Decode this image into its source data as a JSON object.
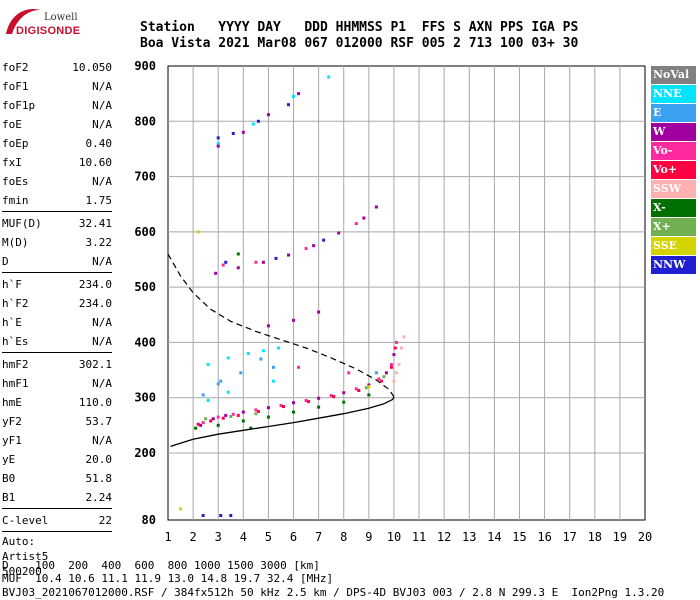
{
  "logo": {
    "line1": "Lowell",
    "line2": "DIGISONDE"
  },
  "header": {
    "line1": "Station   YYYY DAY   DDD HHMMSS P1  FFS S AXN PPS IGA PS",
    "line2": "Boa Vista 2021 Mar08 067 012000 RSF 005 2 713 100 03+ 30"
  },
  "params": [
    {
      "label": "foF2",
      "value": "10.050"
    },
    {
      "label": "foF1",
      "value": "N/A"
    },
    {
      "label": "foF1p",
      "value": "N/A"
    },
    {
      "label": "foE",
      "value": "N/A"
    },
    {
      "label": "foEp",
      "value": "0.40"
    },
    {
      "label": "fxI",
      "value": "10.60"
    },
    {
      "label": "foEs",
      "value": "N/A"
    },
    {
      "label": "fmin",
      "value": "1.75"
    },
    {
      "sep": true
    },
    {
      "label": "MUF(D)",
      "value": "32.41"
    },
    {
      "label": "M(D)",
      "value": "3.22"
    },
    {
      "label": "D",
      "value": "N/A"
    },
    {
      "sep": true
    },
    {
      "label": "h`F",
      "value": "234.0"
    },
    {
      "label": "h`F2",
      "value": "234.0"
    },
    {
      "label": "h`E",
      "value": "N/A"
    },
    {
      "label": "h`Es",
      "value": "N/A"
    },
    {
      "sep": true
    },
    {
      "label": "hmF2",
      "value": "302.1"
    },
    {
      "label": "hmF1",
      "value": "N/A"
    },
    {
      "label": "hmE",
      "value": "110.0"
    },
    {
      "label": "yF2",
      "value": "53.7"
    },
    {
      "label": "yF1",
      "value": "N/A"
    },
    {
      "label": "yE",
      "value": "20.0"
    },
    {
      "label": "B0",
      "value": "51.8"
    },
    {
      "label": "B1",
      "value": "2.24"
    },
    {
      "sep": true
    },
    {
      "label": "C-level",
      "value": "22"
    },
    {
      "sep": true
    }
  ],
  "auto": [
    "Auto:",
    "Artist5",
    "500200"
  ],
  "legend": [
    {
      "name": "NoVal",
      "color": "#808080"
    },
    {
      "name": "NNE",
      "color": "#00e5ff"
    },
    {
      "name": "E",
      "color": "#3aa0f0"
    },
    {
      "name": "W",
      "color": "#a000a0"
    },
    {
      "name": "Vo-",
      "color": "#ff2aa0"
    },
    {
      "name": "Vo+",
      "color": "#ff0040"
    },
    {
      "name": "SSW",
      "color": "#ffb0b0"
    },
    {
      "name": "X-",
      "color": "#007000"
    },
    {
      "name": "X+",
      "color": "#70b050"
    },
    {
      "name": "SSE",
      "color": "#d4d400"
    },
    {
      "name": "NNW",
      "color": "#2020d0"
    }
  ],
  "footer": {
    "d_line": "D    100  200  400  600  800 1000 1500 3000 [km]",
    "muf_line": "MUF  10.4 10.6 11.1 11.9 13.0 14.8 19.7 32.4 [MHz]",
    "info_line": "BVJ03_2021067012000.RSF / 384fx512h 50 kHz 2.5 km / DPS-4D BVJ03 003 / 2.8 N 299.3 E  Ion2Png 1.3.20"
  },
  "chart_data": {
    "type": "scatter",
    "xlabel": "",
    "ylabel": "",
    "xlim": [
      1,
      20
    ],
    "ylim": [
      80,
      900
    ],
    "x_ticks": [
      1,
      2,
      3,
      4,
      5,
      6,
      7,
      8,
      9,
      10,
      11,
      12,
      13,
      14,
      15,
      16,
      17,
      18,
      19,
      20
    ],
    "y_ticks": [
      80,
      200,
      300,
      400,
      500,
      600,
      700,
      800,
      900
    ],
    "grid": true,
    "series": [
      {
        "name": "NNE",
        "color": "#00e5ff",
        "points": [
          [
            3.0,
            760
          ],
          [
            4.4,
            795
          ],
          [
            6.0,
            845
          ],
          [
            7.4,
            880
          ],
          [
            2.6,
            360
          ],
          [
            3.4,
            372
          ],
          [
            4.2,
            380
          ],
          [
            4.8,
            385
          ],
          [
            5.4,
            390
          ],
          [
            2.6,
            295
          ],
          [
            3.4,
            310
          ],
          [
            5.2,
            330
          ]
        ]
      },
      {
        "name": "E",
        "color": "#3aa0f0",
        "points": [
          [
            3.1,
            330
          ],
          [
            3.9,
            345
          ],
          [
            4.7,
            370
          ],
          [
            5.2,
            355
          ],
          [
            2.4,
            305
          ],
          [
            3.0,
            325
          ],
          [
            9.3,
            345
          ]
        ]
      },
      {
        "name": "W",
        "color": "#a000a0",
        "points": [
          [
            2.3,
            250
          ],
          [
            2.8,
            262
          ],
          [
            3.3,
            268
          ],
          [
            4.0,
            274
          ],
          [
            5.0,
            282
          ],
          [
            6.0,
            291
          ],
          [
            7.0,
            299
          ],
          [
            8.0,
            309
          ],
          [
            9.0,
            323
          ],
          [
            9.7,
            345
          ],
          [
            10.0,
            378
          ],
          [
            2.9,
            525
          ],
          [
            3.8,
            535
          ],
          [
            4.8,
            545
          ],
          [
            5.8,
            558
          ],
          [
            6.8,
            575
          ],
          [
            7.8,
            598
          ],
          [
            8.8,
            625
          ],
          [
            9.3,
            645
          ],
          [
            3.0,
            755
          ],
          [
            4.0,
            780
          ],
          [
            5.0,
            812
          ],
          [
            6.2,
            850
          ],
          [
            6.0,
            440
          ],
          [
            7.0,
            455
          ],
          [
            5.0,
            430
          ]
        ]
      },
      {
        "name": "Vo-",
        "color": "#ff2aa0",
        "points": [
          [
            2.4,
            255
          ],
          [
            3.0,
            265
          ],
          [
            3.6,
            270
          ],
          [
            4.5,
            278
          ],
          [
            5.5,
            286
          ],
          [
            6.5,
            295
          ],
          [
            7.5,
            304
          ],
          [
            8.5,
            316
          ],
          [
            9.4,
            334
          ],
          [
            9.9,
            360
          ],
          [
            10.1,
            400
          ],
          [
            3.2,
            540
          ],
          [
            4.5,
            545
          ],
          [
            6.5,
            570
          ],
          [
            8.5,
            615
          ],
          [
            6.2,
            355
          ],
          [
            8.2,
            345
          ]
        ]
      },
      {
        "name": "Vo+",
        "color": "#ff0040",
        "points": [
          [
            2.2,
            252
          ],
          [
            2.7,
            258
          ],
          [
            3.2,
            263
          ],
          [
            3.8,
            268
          ],
          [
            4.6,
            275
          ],
          [
            5.6,
            284
          ],
          [
            6.6,
            293
          ],
          [
            7.6,
            302
          ],
          [
            8.6,
            313
          ],
          [
            9.5,
            330
          ],
          [
            9.9,
            355
          ],
          [
            10.05,
            390
          ]
        ]
      },
      {
        "name": "SSW",
        "color": "#ffb0b0",
        "points": [
          [
            10.0,
            330
          ],
          [
            10.2,
            360
          ],
          [
            10.3,
            390
          ],
          [
            10.4,
            410
          ],
          [
            10.1,
            345
          ]
        ]
      },
      {
        "name": "X-",
        "color": "#007000",
        "points": [
          [
            2.1,
            245
          ],
          [
            3.0,
            250
          ],
          [
            4.0,
            258
          ],
          [
            5.0,
            265
          ],
          [
            6.0,
            274
          ],
          [
            7.0,
            283
          ],
          [
            8.0,
            292
          ],
          [
            9.0,
            305
          ],
          [
            3.8,
            560
          ],
          [
            4.3,
            245
          ]
        ]
      },
      {
        "name": "X+",
        "color": "#70b050",
        "points": [
          [
            2.5,
            262
          ],
          [
            3.5,
            266
          ],
          [
            4.5,
            271
          ],
          [
            8.9,
            318
          ],
          [
            9.6,
            338
          ]
        ]
      },
      {
        "name": "SSE",
        "color": "#d4d400",
        "points": [
          [
            2.2,
            600
          ],
          [
            1.5,
            100
          ],
          [
            9.0,
            320
          ]
        ]
      },
      {
        "name": "NNW",
        "color": "#2020d0",
        "points": [
          [
            3.0,
            770
          ],
          [
            3.6,
            778
          ],
          [
            4.6,
            800
          ],
          [
            5.8,
            830
          ],
          [
            3.3,
            545
          ],
          [
            5.3,
            552
          ],
          [
            7.2,
            585
          ],
          [
            2.4,
            88
          ],
          [
            3.1,
            88
          ],
          [
            3.5,
            88
          ]
        ]
      }
    ],
    "profile_curve": [
      [
        1.1,
        212
      ],
      [
        2.0,
        225
      ],
      [
        3.0,
        234
      ],
      [
        4.0,
        241
      ],
      [
        5.0,
        248
      ],
      [
        6.0,
        255
      ],
      [
        7.0,
        263
      ],
      [
        8.0,
        271
      ],
      [
        9.0,
        281
      ],
      [
        9.6,
        289
      ],
      [
        9.95,
        297
      ],
      [
        10.0,
        302
      ]
    ],
    "muf_curve": [
      [
        1.0,
        560
      ],
      [
        1.5,
        520
      ],
      [
        2.0,
        490
      ],
      [
        2.7,
        460
      ],
      [
        3.5,
        438
      ],
      [
        4.5,
        420
      ],
      [
        5.5,
        405
      ],
      [
        6.5,
        390
      ],
      [
        7.5,
        372
      ],
      [
        8.5,
        352
      ],
      [
        9.3,
        332
      ],
      [
        9.8,
        315
      ],
      [
        10.0,
        302
      ]
    ]
  }
}
